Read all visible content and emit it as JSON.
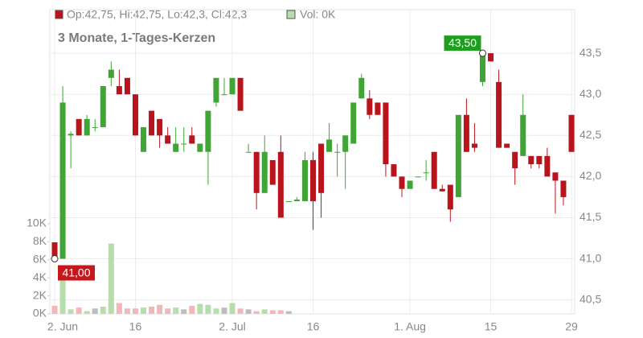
{
  "chart_data": {
    "type": "candlestick",
    "legend": {
      "ohlc": "Op:42,75, Hi:42,75, Lo:42,3, Cl:42,3",
      "volume": "Vol: 0K"
    },
    "subtitle": "3 Monate, 1-Tages-Kerzen",
    "categories": [
      "2. Jun",
      null,
      null,
      null,
      null,
      null,
      null,
      null,
      null,
      null,
      "16",
      null,
      null,
      null,
      null,
      null,
      null,
      null,
      null,
      null,
      null,
      null,
      "2. Jul",
      null,
      null,
      null,
      null,
      null,
      null,
      null,
      null,
      null,
      "16",
      null,
      null,
      null,
      null,
      null,
      null,
      null,
      null,
      null,
      null,
      null,
      "1. Aug",
      null,
      null,
      null,
      null,
      null,
      null,
      null,
      null,
      null,
      "15",
      null,
      null,
      null,
      null,
      null,
      null,
      null,
      null,
      null,
      "29"
    ],
    "open": [
      41.2,
      41.0,
      42.5,
      42.7,
      42.5,
      42.6,
      42.6,
      43.2,
      43.1,
      43.2,
      43.0,
      42.3,
      42.8,
      42.7,
      42.5,
      42.3,
      42.4,
      42.5,
      42.3,
      42.3,
      42.9,
      43.0,
      43.0,
      43.2,
      42.3,
      42.3,
      41.8,
      42.2,
      42.3,
      41.7,
      41.7,
      41.7,
      42.2,
      42.4,
      42.3,
      42.3,
      42.3,
      42.4,
      42.95,
      42.95,
      42.9,
      42.9,
      42.15,
      42.0,
      41.85,
      42.0,
      42.05,
      42.3,
      41.85,
      41.9,
      41.75,
      42.75,
      42.4,
      43.15,
      43.5,
      43.15,
      42.4,
      42.3,
      42.25,
      42.25,
      42.25,
      42.25,
      42.05,
      41.95,
      42.75
    ],
    "high": [
      41.2,
      43.1,
      42.55,
      42.7,
      42.75,
      42.7,
      43.1,
      43.4,
      43.3,
      43.2,
      43.0,
      42.6,
      42.8,
      42.7,
      42.6,
      42.6,
      42.6,
      42.6,
      42.4,
      42.8,
      43.2,
      43.2,
      43.2,
      43.2,
      42.4,
      42.3,
      42.5,
      42.2,
      42.5,
      41.7,
      41.75,
      42.3,
      42.3,
      42.4,
      42.65,
      42.4,
      42.5,
      42.9,
      43.25,
      43.05,
      42.9,
      42.9,
      42.15,
      42.0,
      41.95,
      42.0,
      42.2,
      42.3,
      41.9,
      41.9,
      42.75,
      42.95,
      42.65,
      43.5,
      43.5,
      43.3,
      42.4,
      42.3,
      43.0,
      42.25,
      42.25,
      42.35,
      42.05,
      41.95,
      42.75
    ],
    "low": [
      40.98,
      41.0,
      42.1,
      42.5,
      42.5,
      42.55,
      42.6,
      43.1,
      43.0,
      43.0,
      42.5,
      42.3,
      42.5,
      42.35,
      42.4,
      42.3,
      42.3,
      42.4,
      42.3,
      41.9,
      42.85,
      43.0,
      43.0,
      42.8,
      42.3,
      41.6,
      41.8,
      41.9,
      41.5,
      41.7,
      41.7,
      41.7,
      41.35,
      41.5,
      42.3,
      42.0,
      41.85,
      42.4,
      42.95,
      42.7,
      42.75,
      42.0,
      42.0,
      41.75,
      41.85,
      42.0,
      41.95,
      41.85,
      41.82,
      41.45,
      41.75,
      42.3,
      42.3,
      43.1,
      43.4,
      42.35,
      42.35,
      41.9,
      42.25,
      42.1,
      42.1,
      42.0,
      41.55,
      41.65,
      42.3
    ],
    "close": [
      41.0,
      42.9,
      42.52,
      42.5,
      42.7,
      42.6,
      43.1,
      43.3,
      43.0,
      43.0,
      42.5,
      42.6,
      42.5,
      42.5,
      42.4,
      42.4,
      42.4,
      42.4,
      42.4,
      42.8,
      43.2,
      43.0,
      43.2,
      42.8,
      42.3,
      41.8,
      42.3,
      41.9,
      41.5,
      41.7,
      41.72,
      42.2,
      41.7,
      41.8,
      42.45,
      42.3,
      42.5,
      42.9,
      43.2,
      42.75,
      42.75,
      42.15,
      42.0,
      41.85,
      41.95,
      42.0,
      42.05,
      41.85,
      41.82,
      41.6,
      42.75,
      42.3,
      42.35,
      43.5,
      43.4,
      42.35,
      42.35,
      42.1,
      42.75,
      42.15,
      42.15,
      42.0,
      41.95,
      41.75,
      42.3
    ],
    "volume": [
      900,
      4800,
      500,
      700,
      300,
      600,
      800,
      7800,
      1200,
      600,
      600,
      700,
      800,
      1000,
      600,
      700,
      500,
      900,
      1100,
      1000,
      600,
      700,
      1200,
      600,
      500,
      300,
      500,
      400,
      400,
      300,
      null,
      null,
      null,
      null,
      null,
      null,
      null,
      null,
      null,
      null,
      null,
      null,
      null,
      null,
      null,
      null,
      null,
      null,
      null,
      null,
      null,
      null,
      null,
      null,
      null,
      null,
      null,
      null,
      null,
      null,
      null,
      null,
      null,
      null,
      null
    ],
    "ylim": [
      40.33,
      44.03
    ],
    "yticks": [
      {
        "value": 40.5,
        "label": "40,5"
      },
      {
        "value": 41.0,
        "label": "41,0"
      },
      {
        "value": 41.5,
        "label": "41,5"
      },
      {
        "value": 42.0,
        "label": "42,0"
      },
      {
        "value": 42.5,
        "label": "42,5"
      },
      {
        "value": 43.0,
        "label": "43,0"
      },
      {
        "value": 43.5,
        "label": "43,5"
      }
    ],
    "volume_ylim": [
      0,
      10000
    ],
    "volume_yticks": [
      {
        "value": 0,
        "label": "0K"
      },
      {
        "value": 2000,
        "label": "2K"
      },
      {
        "value": 4000,
        "label": "4K"
      },
      {
        "value": 6000,
        "label": "6K"
      },
      {
        "value": 8000,
        "label": "8K"
      },
      {
        "value": 10000,
        "label": "10K"
      }
    ],
    "annotations": [
      {
        "text": "41,00",
        "index": 0,
        "value": 41.0,
        "color": "#c8161d"
      },
      {
        "text": "43,50",
        "index": 53,
        "value": 43.5,
        "color": "#1e9e1e"
      }
    ],
    "up_color": "#3fa535",
    "down_color": "#b9141b",
    "volume_up_color": "#b5deaa",
    "volume_down_color": "#f2b8b8",
    "volume_flat_color": "#bdbdbd",
    "grid": true
  }
}
